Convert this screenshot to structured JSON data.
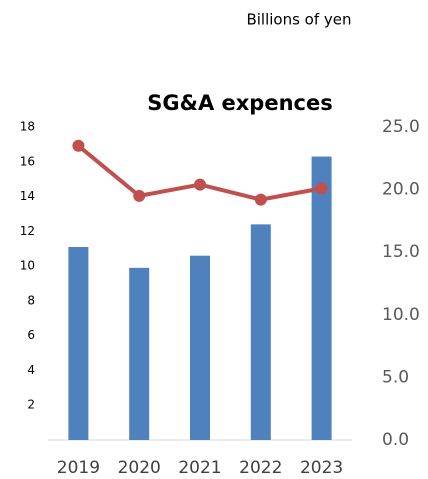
{
  "chart_data": {
    "type": "combo",
    "title": "SG&A expences",
    "unit_label": "Billions of yen",
    "categories": [
      "2019",
      "2020",
      "2021",
      "2022",
      "2023"
    ],
    "series": [
      {
        "type": "bar",
        "color": "#4f81bd",
        "values": [
          11.1,
          9.9,
          10.6,
          12.4,
          16.3
        ]
      },
      {
        "type": "line",
        "axis": "y2",
        "color": "#c0504d",
        "values": [
          23.5,
          19.5,
          20.4,
          19.2,
          20.1
        ]
      }
    ],
    "ylim": [
      0,
      18
    ],
    "yticks": [
      2,
      4,
      6,
      8,
      10,
      12,
      14,
      16,
      18
    ],
    "y2lim": [
      0,
      25
    ],
    "y2ticks": [
      {
        "value": 0,
        "label": "0.0"
      },
      {
        "value": 5,
        "label": "5.0"
      },
      {
        "value": 10,
        "label": "10.0"
      },
      {
        "value": 15,
        "label": "15.0"
      },
      {
        "value": 20,
        "label": "20.0"
      },
      {
        "value": 25,
        "label": "25.0"
      }
    ]
  }
}
